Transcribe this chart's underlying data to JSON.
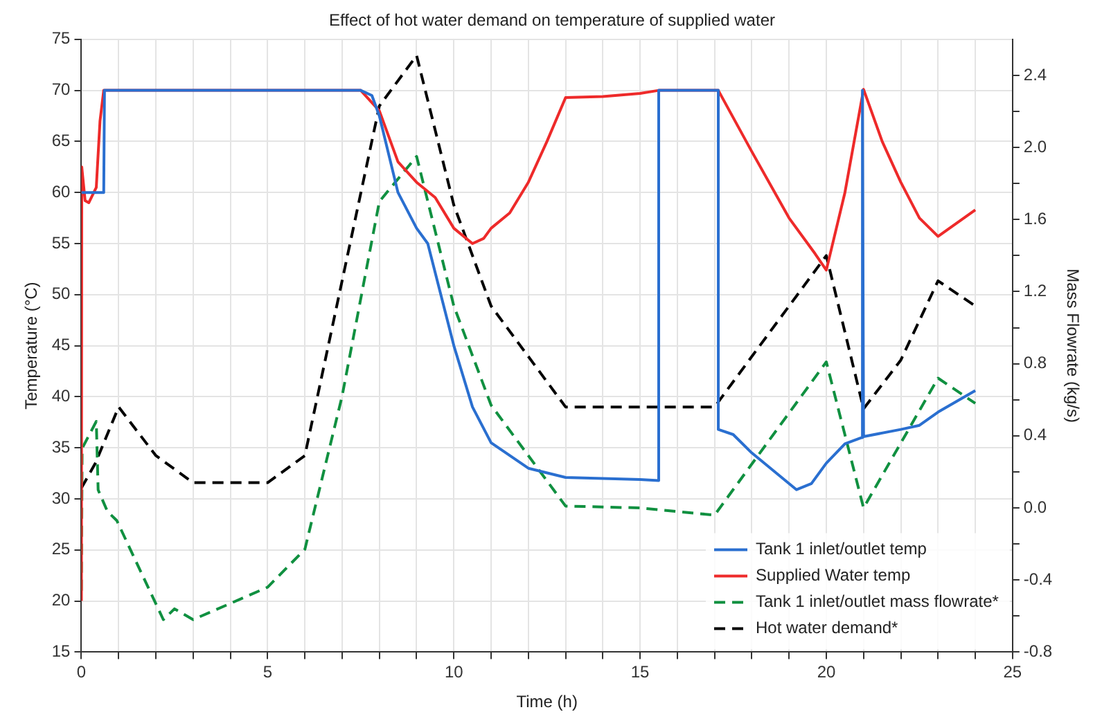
{
  "chart_data": {
    "type": "line",
    "title": "Effect of hot water demand on temperature of supplied water",
    "xlabel": "Time (h)",
    "ylabel": "Temperature (°C)",
    "y2label": "Mass Flowrate (kg/s)",
    "xlim": [
      0,
      25
    ],
    "xticks": [
      0,
      {
        "value": 1,
        "label": null
      },
      {
        "value": 2,
        "label": null
      },
      {
        "value": 3,
        "label": null
      },
      {
        "value": 4,
        "label": null
      },
      5,
      {
        "value": 6,
        "label": null
      },
      {
        "value": 7,
        "label": null
      },
      {
        "value": 8,
        "label": null
      },
      {
        "value": 9,
        "label": null
      },
      10,
      {
        "value": 11,
        "label": null
      },
      {
        "value": 12,
        "label": null
      },
      {
        "value": 13,
        "label": null
      },
      {
        "value": 14,
        "label": null
      },
      15,
      {
        "value": 16,
        "label": null
      },
      {
        "value": 17,
        "label": null
      },
      {
        "value": 18,
        "label": null
      },
      {
        "value": 19,
        "label": null
      },
      20,
      {
        "value": 21,
        "label": null
      },
      {
        "value": 22,
        "label": null
      },
      {
        "value": 23,
        "label": null
      },
      {
        "value": 24,
        "label": null
      },
      25
    ],
    "ylim": [
      15,
      75
    ],
    "yticks": [
      15,
      20,
      25,
      30,
      35,
      40,
      45,
      50,
      55,
      60,
      65,
      70,
      75
    ],
    "y2lim": [
      -0.8,
      2.6
    ],
    "y2ticks": [
      {
        "value": -0.8,
        "label": "-0.8"
      },
      {
        "value": -0.6,
        "label": null
      },
      {
        "value": -0.4,
        "label": "-0.4"
      },
      {
        "value": -0.2,
        "label": null
      },
      {
        "value": 0,
        "label": "0.0"
      },
      {
        "value": 0.2,
        "label": null
      },
      {
        "value": 0.4,
        "label": "0.4"
      },
      {
        "value": 0.6,
        "label": null
      },
      {
        "value": 0.8,
        "label": "0.8"
      },
      {
        "value": 1,
        "label": null
      },
      {
        "value": 1.2,
        "label": "1.2"
      },
      {
        "value": 1.4,
        "label": null
      },
      {
        "value": 1.6,
        "label": "1.6"
      },
      {
        "value": 1.8,
        "label": null
      },
      {
        "value": 2,
        "label": "2.0"
      },
      {
        "value": 2.2,
        "label": null
      },
      {
        "value": 2.4,
        "label": "2.4"
      }
    ],
    "grid": true,
    "legend": "bottom right",
    "marker": "none",
    "series": [
      {
        "name": "Tank 1 inlet/outlet temp",
        "color": "#2a6fd0",
        "line_style": "solid",
        "x": [
          0,
          0.6,
          0.62,
          7.5,
          7.8,
          8,
          8.5,
          9,
          9.3,
          10,
          10.5,
          11,
          12,
          13,
          15,
          15.5,
          15.5,
          17.1,
          17.1,
          17.5,
          18,
          19.2,
          19.6,
          20,
          20.5,
          20.95,
          20.97,
          21,
          22,
          22.5,
          23,
          24
        ],
        "values": [
          60,
          60,
          70,
          70,
          69.5,
          67.5,
          60,
          56.5,
          55,
          45,
          39,
          35.5,
          33,
          32.1,
          31.9,
          31.8,
          70,
          70,
          36.8,
          36.3,
          34.5,
          30.9,
          31.5,
          33.5,
          35.4,
          36,
          70,
          36.1,
          36.8,
          37.2,
          38.5,
          40.6
        ]
      },
      {
        "name": "Supplied Water temp",
        "color": "#ee2a2a",
        "line_style": "solid",
        "x": [
          0,
          0.01,
          0.1,
          0.2,
          0.4,
          0.5,
          0.6,
          7.5,
          8,
          8.5,
          9,
          9.5,
          10,
          10.5,
          10.8,
          11,
          11.5,
          12,
          12.5,
          13,
          14,
          15,
          15.5,
          17.1,
          18,
          19,
          19.7,
          20,
          20.5,
          21,
          21.5,
          22,
          22.5,
          23,
          24
        ],
        "values": [
          20,
          62.5,
          59.2,
          59,
          60.5,
          67,
          70,
          70,
          68,
          63,
          61,
          59.5,
          56.5,
          55,
          55.5,
          56.5,
          58,
          61,
          65,
          69.3,
          69.4,
          69.7,
          70,
          70,
          64,
          57.5,
          54,
          52.4,
          60,
          70.1,
          65,
          61,
          57.5,
          55.7,
          58.3
        ]
      },
      {
        "name": "Tank 1 inlet/outlet mass flowrate*",
        "color": "#109040",
        "line_style": "dashed",
        "axis": "y2",
        "x": [
          0,
          0.02,
          0.4,
          0.45,
          0.7,
          0.95,
          2.2,
          2.5,
          3,
          5,
          6,
          7,
          8,
          9,
          10,
          11,
          13,
          15,
          17,
          20,
          21,
          23,
          24
        ],
        "values": [
          -0.46,
          0.33,
          0.48,
          0.1,
          -0.02,
          -0.07,
          -0.62,
          -0.56,
          -0.62,
          -0.44,
          -0.23,
          0.62,
          1.7,
          1.95,
          1.12,
          0.57,
          0.01,
          0,
          -0.04,
          0.81,
          0,
          0.72,
          0.58
        ]
      },
      {
        "name": "Hot water demand*",
        "color": "#000000",
        "line_style": "dashed",
        "axis": "y2",
        "x": [
          0,
          0.38,
          1,
          2,
          3,
          5,
          6,
          8,
          9,
          10,
          11,
          13,
          17,
          20,
          21,
          22,
          23,
          24
        ],
        "values": [
          0.11,
          0.25,
          0.56,
          0.29,
          0.14,
          0.14,
          0.29,
          2.23,
          2.51,
          1.68,
          1.12,
          0.56,
          0.56,
          1.4,
          0.55,
          0.82,
          1.26,
          1.12
        ]
      }
    ]
  }
}
